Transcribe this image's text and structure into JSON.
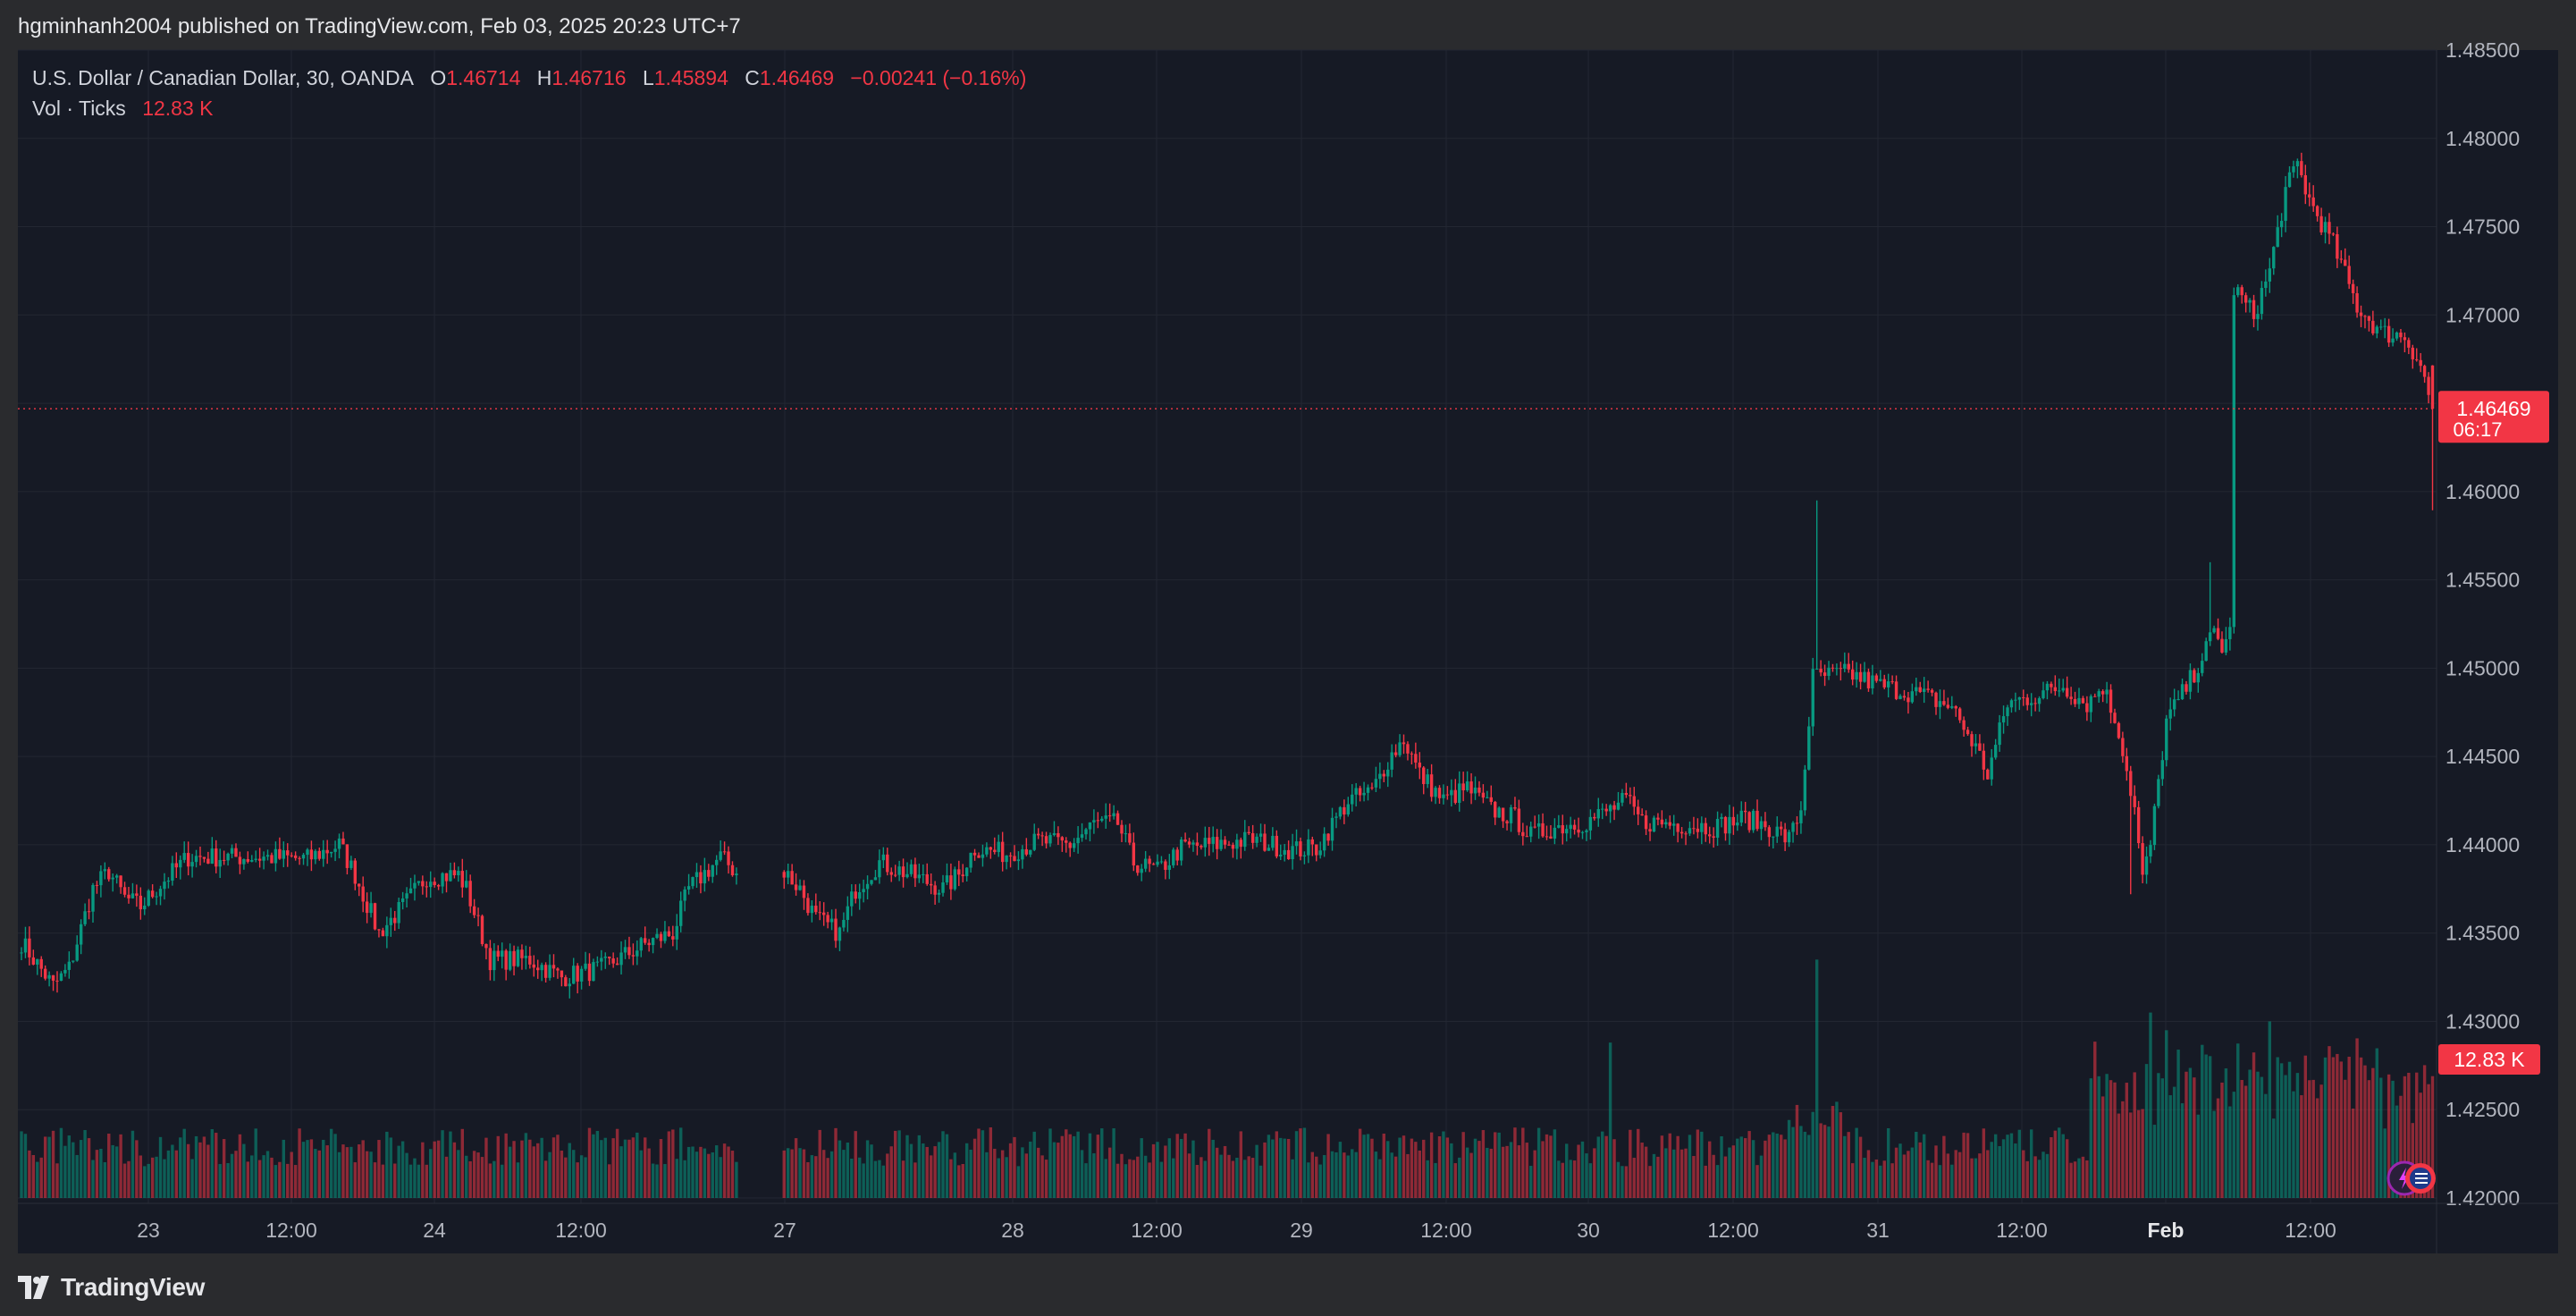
{
  "header": {
    "published_text": "hgminhanh2004 published on TradingView.com, Feb 03, 2025 20:23 UTC+7"
  },
  "legend": {
    "symbol": "U.S. Dollar / Canadian Dollar, 30, OANDA",
    "o_label": "O",
    "o_value": "1.46714",
    "h_label": "H",
    "h_value": "1.46716",
    "l_label": "L",
    "l_value": "1.45894",
    "c_label": "C",
    "c_value": "1.46469",
    "change": "−0.00241 (−0.16%)",
    "vol_label": "Vol · Ticks",
    "vol_value": "12.83 K"
  },
  "footer": {
    "brand": "TradingView"
  },
  "colors": {
    "background": "#161a25",
    "grid": "#232732",
    "up": "#089981",
    "down": "#f23645",
    "axis_text": "#b2b5be"
  },
  "chart_data": {
    "type": "candlestick",
    "title": "U.S. Dollar / Canadian Dollar, 30, OANDA",
    "interval_minutes": 30,
    "y_axis": {
      "ticks": [
        "1.48500",
        "1.48000",
        "1.47500",
        "1.47000",
        "1.46500",
        "1.46000",
        "1.45500",
        "1.45000",
        "1.44500",
        "1.44000",
        "1.43500",
        "1.43000",
        "1.42500",
        "1.42000"
      ],
      "ylim": [
        1.42,
        1.485
      ]
    },
    "x_axis": {
      "ticks": [
        "23",
        "12:00",
        "24",
        "12:00",
        "27",
        "28",
        "12:00",
        "29",
        "12:00",
        "30",
        "12:00",
        "31",
        "12:00",
        "Feb",
        "12:00"
      ]
    },
    "last_price_label": "1.46469",
    "last_price": 1.46469,
    "countdown": "06:17",
    "volume_label": "12.83 K",
    "volume_last": 12830,
    "grid": true,
    "anchors": [
      [
        0,
        1.4345
      ],
      [
        8,
        1.432
      ],
      [
        12,
        1.433
      ],
      [
        18,
        1.4375
      ],
      [
        22,
        1.4385
      ],
      [
        26,
        1.437
      ],
      [
        30,
        1.4365
      ],
      [
        36,
        1.438
      ],
      [
        42,
        1.4393
      ],
      [
        60,
        1.4393
      ],
      [
        72,
        1.4392
      ],
      [
        80,
        1.44
      ],
      [
        84,
        1.4383
      ],
      [
        90,
        1.435
      ],
      [
        96,
        1.4365
      ],
      [
        102,
        1.4382
      ],
      [
        110,
        1.4383
      ],
      [
        112,
        1.4375
      ],
      [
        118,
        1.4335
      ],
      [
        128,
        1.4335
      ],
      [
        136,
        1.4325
      ],
      [
        146,
        1.433
      ],
      [
        158,
        1.4345
      ],
      [
        164,
        1.435
      ],
      [
        168,
        1.4375
      ],
      [
        176,
        1.4393
      ],
      [
        182,
        1.438
      ],
      [
        190,
        1.439
      ],
      [
        196,
        1.4375
      ],
      [
        200,
        1.4358
      ],
      [
        206,
        1.435
      ],
      [
        210,
        1.4375
      ],
      [
        216,
        1.439
      ],
      [
        224,
        1.4383
      ],
      [
        232,
        1.4375
      ],
      [
        236,
        1.4383
      ],
      [
        240,
        1.4398
      ],
      [
        248,
        1.4395
      ],
      [
        256,
        1.4402
      ],
      [
        264,
        1.44
      ],
      [
        270,
        1.4412
      ],
      [
        276,
        1.4412
      ],
      [
        280,
        1.439
      ],
      [
        286,
        1.4385
      ],
      [
        292,
        1.4398
      ],
      [
        300,
        1.44
      ],
      [
        310,
        1.4403
      ],
      [
        320,
        1.4397
      ],
      [
        326,
        1.4398
      ],
      [
        334,
        1.4425
      ],
      [
        340,
        1.443
      ],
      [
        344,
        1.4448
      ],
      [
        348,
        1.446
      ],
      [
        352,
        1.444
      ],
      [
        358,
        1.4425
      ],
      [
        364,
        1.4432
      ],
      [
        370,
        1.442
      ],
      [
        376,
        1.4415
      ],
      [
        380,
        1.4405
      ],
      [
        386,
        1.441
      ],
      [
        394,
        1.4413
      ],
      [
        400,
        1.442
      ],
      [
        404,
        1.4425
      ],
      [
        408,
        1.4413
      ],
      [
        416,
        1.4412
      ],
      [
        426,
        1.441
      ],
      [
        434,
        1.4415
      ],
      [
        440,
        1.441
      ],
      [
        445,
        1.4403
      ],
      [
        448,
        1.442
      ],
      [
        451,
        1.4495
      ],
      [
        460,
        1.4497
      ],
      [
        468,
        1.449
      ],
      [
        478,
        1.4485
      ],
      [
        486,
        1.4478
      ],
      [
        492,
        1.4455
      ],
      [
        495,
        1.444
      ],
      [
        500,
        1.448
      ],
      [
        508,
        1.4485
      ],
      [
        514,
        1.449
      ],
      [
        520,
        1.448
      ],
      [
        524,
        1.449
      ],
      [
        528,
        1.4465
      ],
      [
        532,
        1.442
      ],
      [
        534,
        1.438
      ],
      [
        536,
        1.44
      ],
      [
        540,
        1.447
      ],
      [
        546,
        1.4493
      ],
      [
        552,
        1.452
      ],
      [
        554,
        1.4512
      ],
      [
        556,
        1.452
      ],
      [
        557,
        1.4715
      ],
      [
        562,
        1.47
      ],
      [
        566,
        1.4725
      ],
      [
        570,
        1.477
      ],
      [
        573,
        1.4785
      ],
      [
        576,
        1.4765
      ],
      [
        582,
        1.474
      ],
      [
        588,
        1.4705
      ],
      [
        594,
        1.469
      ],
      [
        600,
        1.4688
      ],
      [
        604,
        1.4672
      ],
      [
        607,
        1.4646
      ]
    ],
    "gap": [
      181,
      191
    ],
    "volume_max_tick": 1.43
  }
}
